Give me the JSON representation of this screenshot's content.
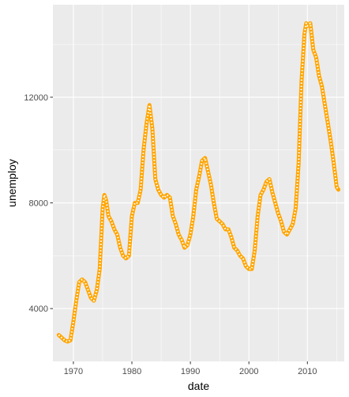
{
  "chart_data": {
    "type": "line",
    "title": "",
    "xlabel": "date",
    "ylabel": "unemploy",
    "x_tick_labels": [
      "1970",
      "1980",
      "1990",
      "2000",
      "2010"
    ],
    "x_tick_values": [
      1970,
      1980,
      1990,
      2000,
      2010
    ],
    "y_tick_labels": [
      "4000",
      "8000",
      "12000"
    ],
    "y_tick_values": [
      4000,
      8000,
      12000
    ],
    "xlim": [
      1966.5,
      2016.3
    ],
    "ylim": [
      2000,
      15500
    ],
    "grid": true,
    "legend": "none",
    "colors": {
      "panel_bg": "#ebebeb",
      "grid": "#ffffff",
      "line": "#ffa500",
      "overlay": "#ffffff"
    },
    "series": [
      {
        "x": [
          1967.5,
          1968.0,
          1968.5,
          1969.0,
          1969.5,
          1970.0,
          1970.5,
          1971.0,
          1971.5,
          1972.0,
          1972.5,
          1973.0,
          1973.5,
          1974.0,
          1974.5,
          1975.0,
          1975.3,
          1975.6,
          1976.0,
          1976.5,
          1977.0,
          1977.5,
          1978.0,
          1978.5,
          1979.0,
          1979.5,
          1980.0,
          1980.5,
          1981.0,
          1981.5,
          1982.0,
          1982.5,
          1983.0,
          1983.5,
          1984.0,
          1984.5,
          1985.0,
          1985.5,
          1986.0,
          1986.5,
          1987.0,
          1987.5,
          1988.0,
          1988.5,
          1989.0,
          1989.5,
          1990.0,
          1990.5,
          1991.0,
          1991.5,
          1992.0,
          1992.5,
          1993.0,
          1993.5,
          1994.0,
          1994.5,
          1995.0,
          1995.5,
          1996.0,
          1996.5,
          1997.0,
          1997.5,
          1998.0,
          1998.5,
          1999.0,
          1999.5,
          2000.0,
          2000.5,
          2001.0,
          2001.5,
          2002.0,
          2002.5,
          2003.0,
          2003.5,
          2004.0,
          2004.5,
          2005.0,
          2005.5,
          2006.0,
          2006.5,
          2007.0,
          2007.5,
          2008.0,
          2008.5,
          2009.0,
          2009.5,
          2009.8,
          2010.0,
          2010.5,
          2011.0,
          2011.5,
          2012.0,
          2012.5,
          2013.0,
          2013.5,
          2014.0,
          2014.5,
          2015.0,
          2015.3
        ],
        "y": [
          3000,
          2900,
          2800,
          2750,
          2800,
          3500,
          4300,
          5000,
          5100,
          5000,
          4700,
          4400,
          4300,
          4700,
          5500,
          7800,
          8300,
          8100,
          7500,
          7300,
          7000,
          6800,
          6300,
          6000,
          5900,
          6000,
          7500,
          8000,
          8000,
          8500,
          10000,
          11000,
          11700,
          10800,
          8900,
          8500,
          8300,
          8200,
          8300,
          8200,
          7500,
          7200,
          6800,
          6600,
          6300,
          6400,
          6800,
          7500,
          8500,
          9000,
          9600,
          9700,
          9200,
          8700,
          8000,
          7400,
          7300,
          7200,
          7000,
          7000,
          6700,
          6300,
          6200,
          6000,
          5900,
          5600,
          5500,
          5500,
          6200,
          7500,
          8300,
          8500,
          8800,
          8900,
          8400,
          8000,
          7600,
          7300,
          6900,
          6800,
          7000,
          7200,
          7800,
          9500,
          12600,
          14400,
          14800,
          14700,
          14800,
          13800,
          13500,
          12800,
          12400,
          11700,
          11000,
          10300,
          9500,
          8600,
          8500
        ]
      }
    ]
  }
}
